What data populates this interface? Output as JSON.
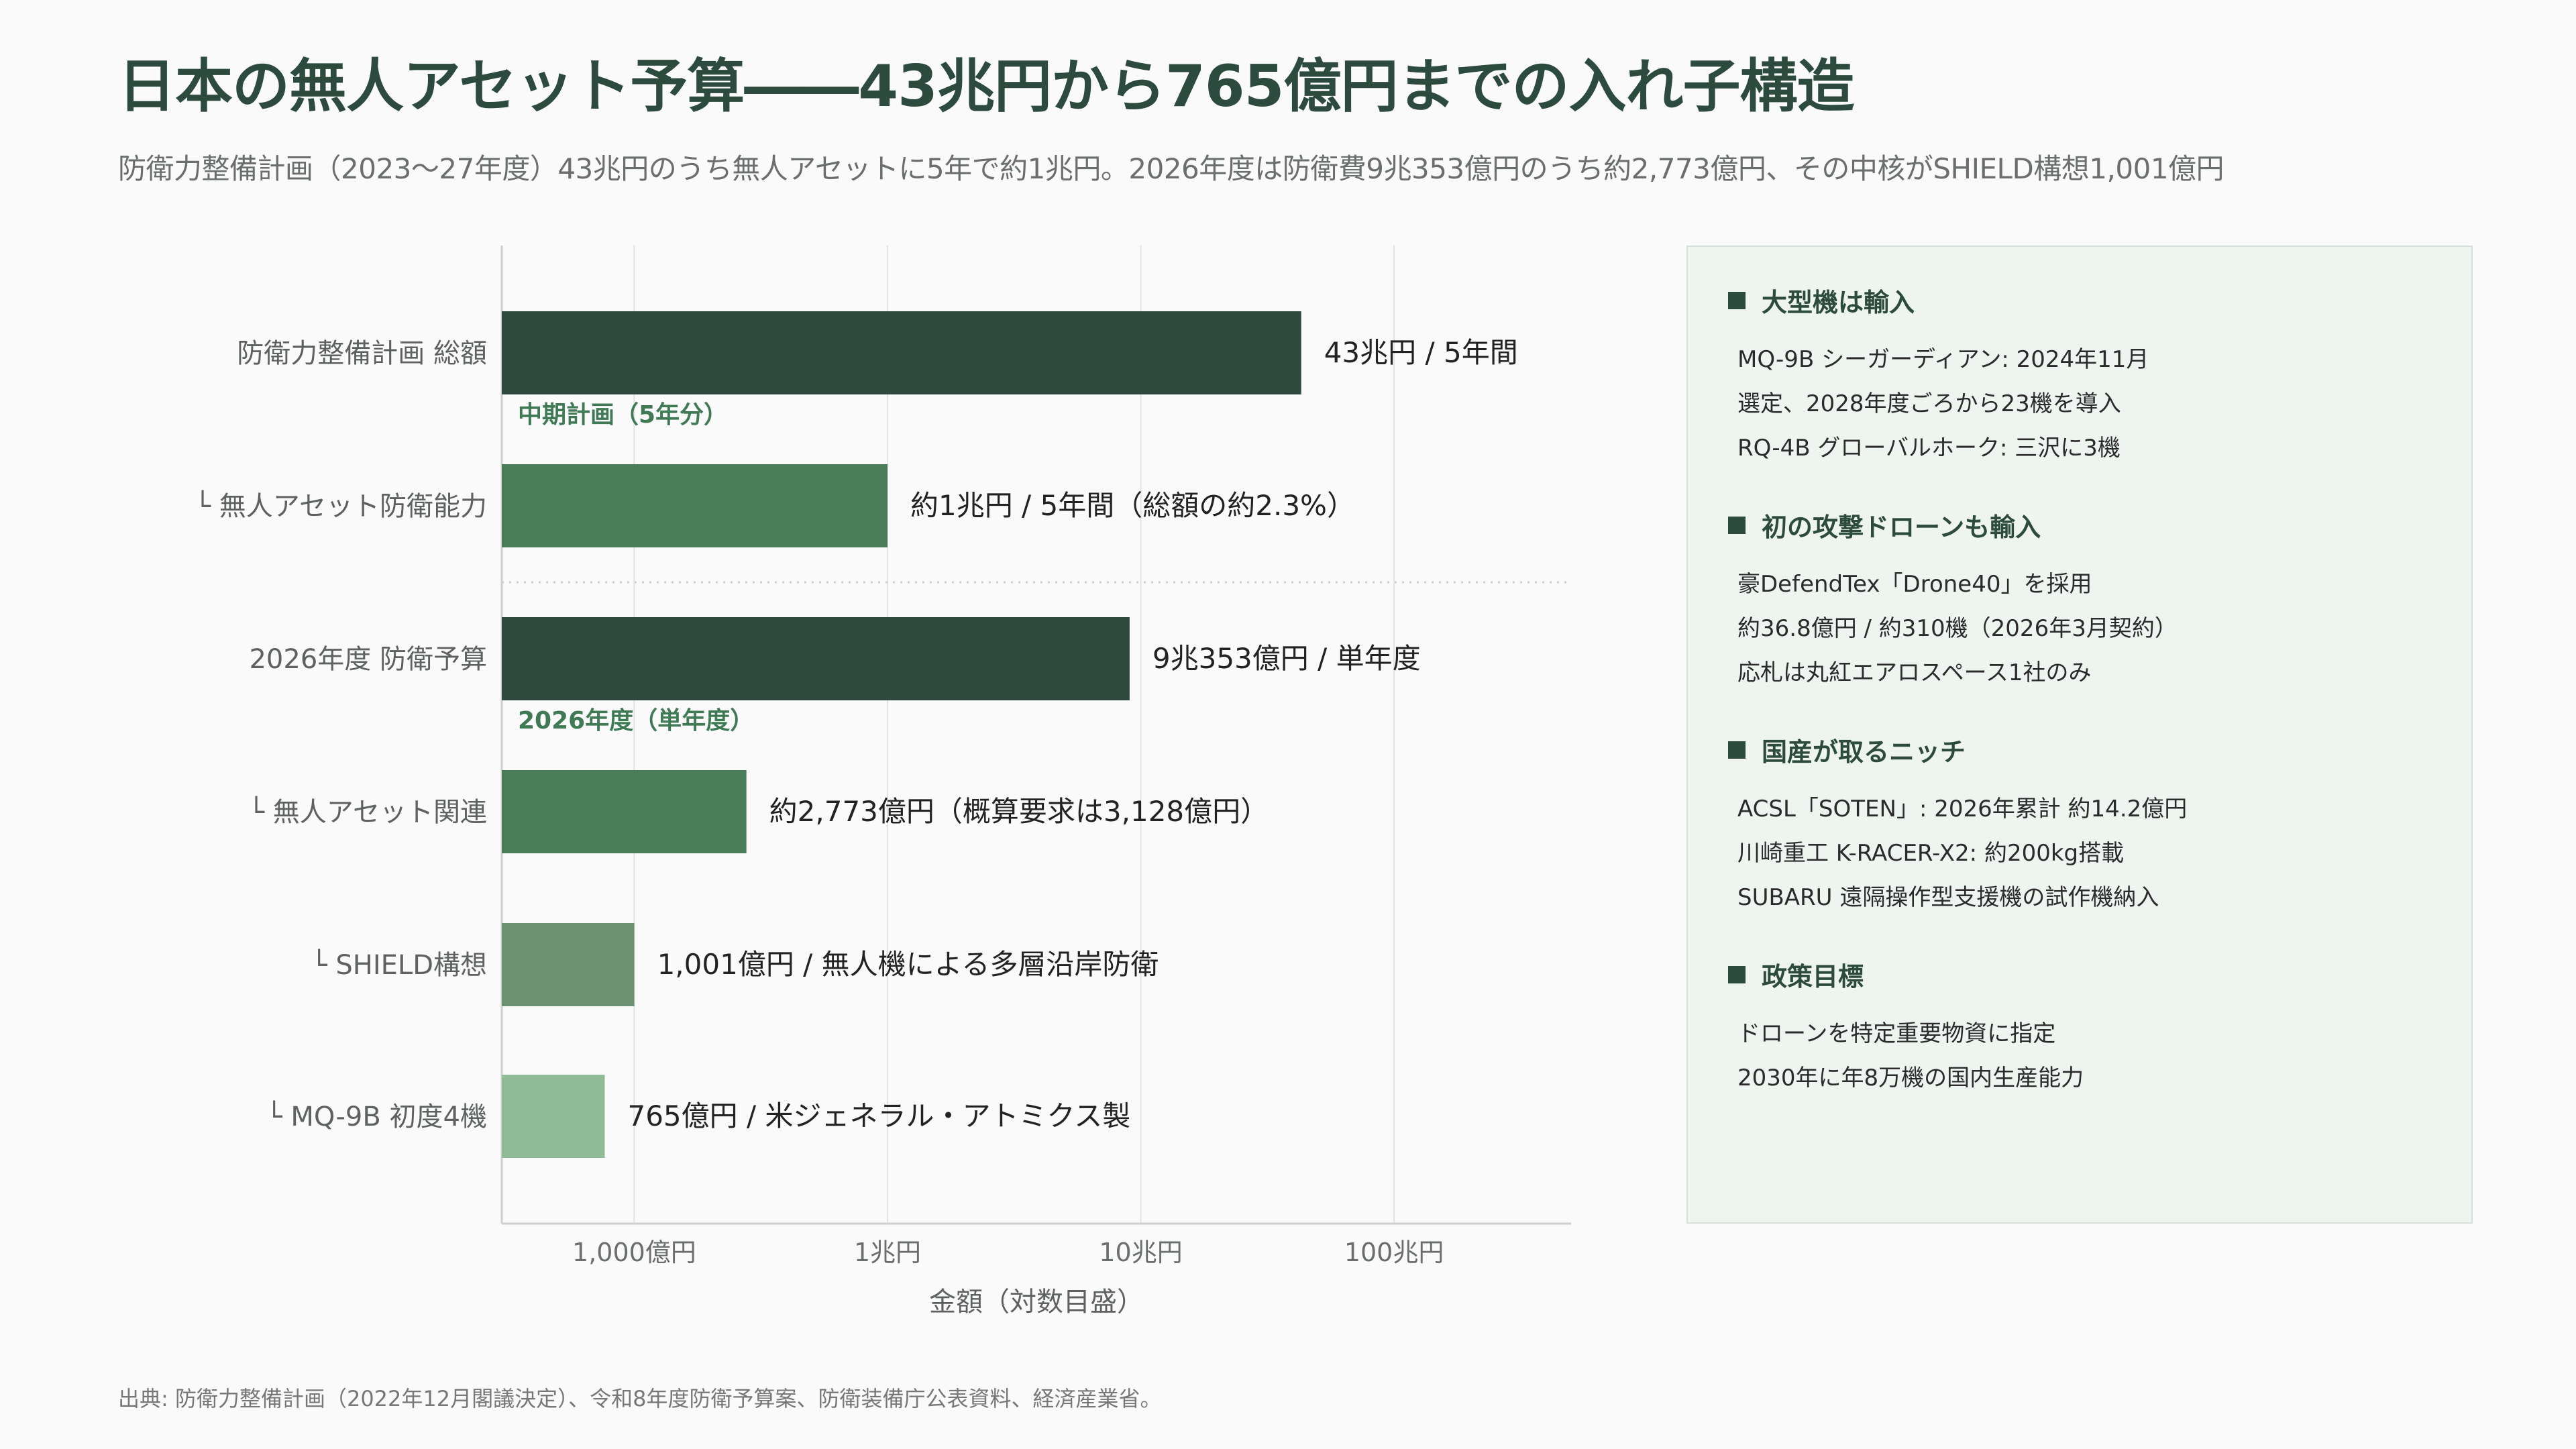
{
  "title": "日本の無人アセット予算――43兆円から765億円までの入れ子構造",
  "subtitle": "防衛力整備計画（2023〜27年度）43兆円のうち無人アセットに5年で約1兆円。2026年度は防衛費9兆353億円のうち約2,773億円、その中核がSHIELD構想1,001億円",
  "chart_data": {
    "type": "bar",
    "orientation": "horizontal",
    "x_scale": "log",
    "unit": "億円",
    "xlim": [
      300,
      5000000
    ],
    "xlabel": "金額（対数目盛）",
    "grid": true,
    "xticks": [
      {
        "value": 1000,
        "label": "1,000億円"
      },
      {
        "value": 10000,
        "label": "1兆円"
      },
      {
        "value": 100000,
        "label": "10兆円"
      },
      {
        "value": 1000000,
        "label": "100兆円"
      }
    ],
    "categories": [
      "防衛力整備計画 総額",
      "└ 無人アセット防衛能力",
      "2026年度 防衛予算",
      "└ 無人アセット関連",
      "└ SHIELD構想",
      "└ MQ-9B 初度4機"
    ],
    "values": [
      430000,
      10000,
      90353,
      2773,
      1001,
      765
    ],
    "value_labels": [
      "43兆円 / 5年間",
      "約1兆円 / 5年間（総額の約2.3%）",
      "9兆353億円 / 単年度",
      "約2,773億円（概算要求は3,128億円）",
      "1,001億円 / 無人機による多層沿岸防衛",
      "765億円 / 米ジェネラル・アトミクス製"
    ],
    "colors": [
      "#2e4a3f",
      "#4a7c59",
      "#2e4a3f",
      "#4a7c59",
      "#6b9273",
      "#8fbc96"
    ],
    "groups": [
      {
        "label": "中期計画（5年分）",
        "after_index": 0
      },
      {
        "label": "2026年度（単年度）",
        "after_index": 2
      }
    ]
  },
  "panel": {
    "sections": [
      {
        "title": "大型機は輸入",
        "lines": [
          "MQ-9B シーガーディアン: 2024年11月",
          "選定、2028年度ごろから23機を導入",
          "RQ-4B グローバルホーク: 三沢に3機"
        ]
      },
      {
        "title": "初の攻撃ドローンも輸入",
        "lines": [
          "豪DefendTex「Drone40」を採用",
          "約36.8億円 / 約310機（2026年3月契約）",
          "応札は丸紅エアロスペース1社のみ"
        ]
      },
      {
        "title": "国産が取るニッチ",
        "lines": [
          "ACSL「SOTEN」: 2026年累計 約14.2億円",
          "川崎重工 K-RACER-X2: 約200kg搭載",
          "SUBARU 遠隔操作型支援機の試作機納入"
        ]
      },
      {
        "title": "政策目標",
        "lines": [
          "ドローンを特定重要物資に指定",
          "2030年に年8万機の国内生産能力"
        ]
      }
    ]
  },
  "source": "出典: 防衛力整備計画（2022年12月閣議決定）、令和8年度防衛予算案、防衛装備庁公表資料、経済産業省。"
}
